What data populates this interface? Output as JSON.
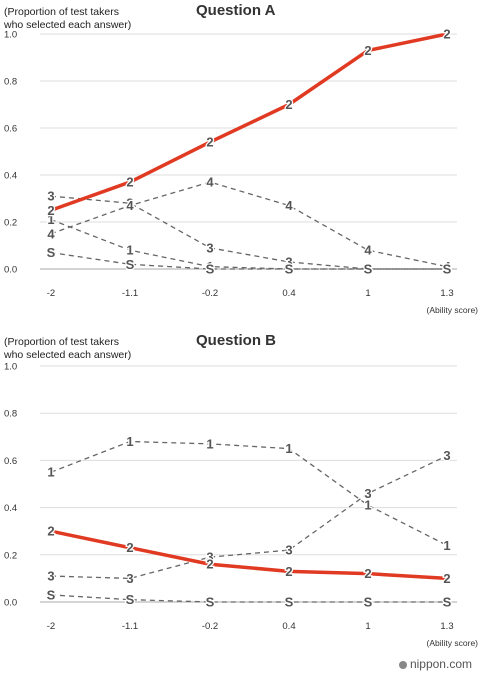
{
  "footer": {
    "brand": "nippon",
    "brand_suffix": ".com"
  },
  "chart_data": [
    {
      "type": "line",
      "title": "Question A",
      "ylabel": "(Proportion of test takers who selected each answer)",
      "ylabel_lines": [
        "(Proportion of test takers",
        "who selected each answer)"
      ],
      "xlabel": "(Ability score)",
      "categories": [
        "-2",
        "-1.1",
        "-0.2",
        "0.4",
        "1",
        "1.3"
      ],
      "y_ticks": [
        "0.0",
        "0.2",
        "0.4",
        "0.6",
        "0.8",
        "1.0"
      ],
      "ylim": [
        0,
        1
      ],
      "highlight_color": "#e03a22",
      "dashed_color": "#666666",
      "series": [
        {
          "name": "2",
          "highlight": true,
          "values": [
            0.25,
            0.37,
            0.54,
            0.7,
            0.93,
            1.0
          ]
        },
        {
          "name": "1",
          "highlight": false,
          "values": [
            0.21,
            0.08,
            0.01,
            0.0,
            0.0,
            0.0
          ]
        },
        {
          "name": "3",
          "highlight": false,
          "values": [
            0.31,
            0.28,
            0.09,
            0.03,
            0.0,
            0.0
          ]
        },
        {
          "name": "4",
          "highlight": false,
          "values": [
            0.15,
            0.27,
            0.37,
            0.27,
            0.08,
            0.01
          ]
        },
        {
          "name": "S",
          "highlight": false,
          "values": [
            0.07,
            0.02,
            0.0,
            0.0,
            0.0,
            0.0
          ]
        }
      ]
    },
    {
      "type": "line",
      "title": "Question B",
      "ylabel": "(Proportion of test takers who selected each answer)",
      "ylabel_lines": [
        "(Proportion of test takers",
        "who selected each answer)"
      ],
      "xlabel": "(Ability score)",
      "categories": [
        "-2",
        "-1.1",
        "-0.2",
        "0.4",
        "1",
        "1.3"
      ],
      "y_ticks": [
        "0.0",
        "0.2",
        "0.4",
        "0.6",
        "0.8",
        "1.0"
      ],
      "ylim": [
        0,
        1
      ],
      "highlight_color": "#e03a22",
      "dashed_color": "#666666",
      "series": [
        {
          "name": "2",
          "highlight": true,
          "values": [
            0.3,
            0.23,
            0.16,
            0.13,
            0.12,
            0.1
          ]
        },
        {
          "name": "1",
          "highlight": false,
          "values": [
            0.55,
            0.68,
            0.67,
            0.65,
            0.41,
            0.24
          ]
        },
        {
          "name": "3",
          "highlight": false,
          "values": [
            0.11,
            0.1,
            0.19,
            0.22,
            0.46,
            0.62
          ]
        },
        {
          "name": "S",
          "highlight": false,
          "values": [
            0.03,
            0.01,
            0.0,
            0.0,
            0.0,
            0.0
          ]
        }
      ]
    }
  ]
}
